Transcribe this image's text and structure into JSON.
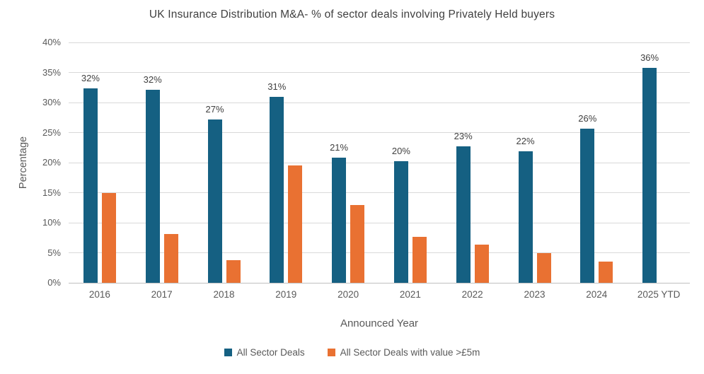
{
  "chart_data": {
    "type": "bar",
    "title": "UK Insurance Distribution M&A- % of sector deals involving Privately Held buyers",
    "xlabel": "Announced Year",
    "ylabel": "Percentage",
    "ylim": [
      0,
      40
    ],
    "ytick_step": 5,
    "ytick_labels": [
      "0%",
      "5%",
      "10%",
      "15%",
      "20%",
      "25%",
      "30%",
      "35%",
      "40%"
    ],
    "grid": true,
    "legend_position": "bottom",
    "categories": [
      "2016",
      "2017",
      "2018",
      "2019",
      "2020",
      "2021",
      "2022",
      "2023",
      "2024",
      "2025 YTD"
    ],
    "series": [
      {
        "name": "All Sector Deals",
        "color": "#156082",
        "values": [
          32.4,
          32.1,
          27.2,
          30.9,
          20.8,
          20.2,
          22.7,
          21.9,
          25.7,
          35.8
        ],
        "labels": [
          "32%",
          "32%",
          "27%",
          "31%",
          "21%",
          "20%",
          "23%",
          "22%",
          "26%",
          "36%"
        ]
      },
      {
        "name": "All Sector Deals with value >£5m",
        "color": "#E97132",
        "values": [
          14.9,
          8.1,
          3.8,
          19.5,
          12.9,
          7.6,
          6.3,
          5.0,
          3.5,
          null
        ],
        "labels": null
      }
    ]
  },
  "colors": {
    "series1": "#156082",
    "series2": "#E97132",
    "gridline": "#d9d9d9",
    "axis_line": "#bfbfbf",
    "tick_text": "#595959",
    "title_text": "#404040"
  }
}
